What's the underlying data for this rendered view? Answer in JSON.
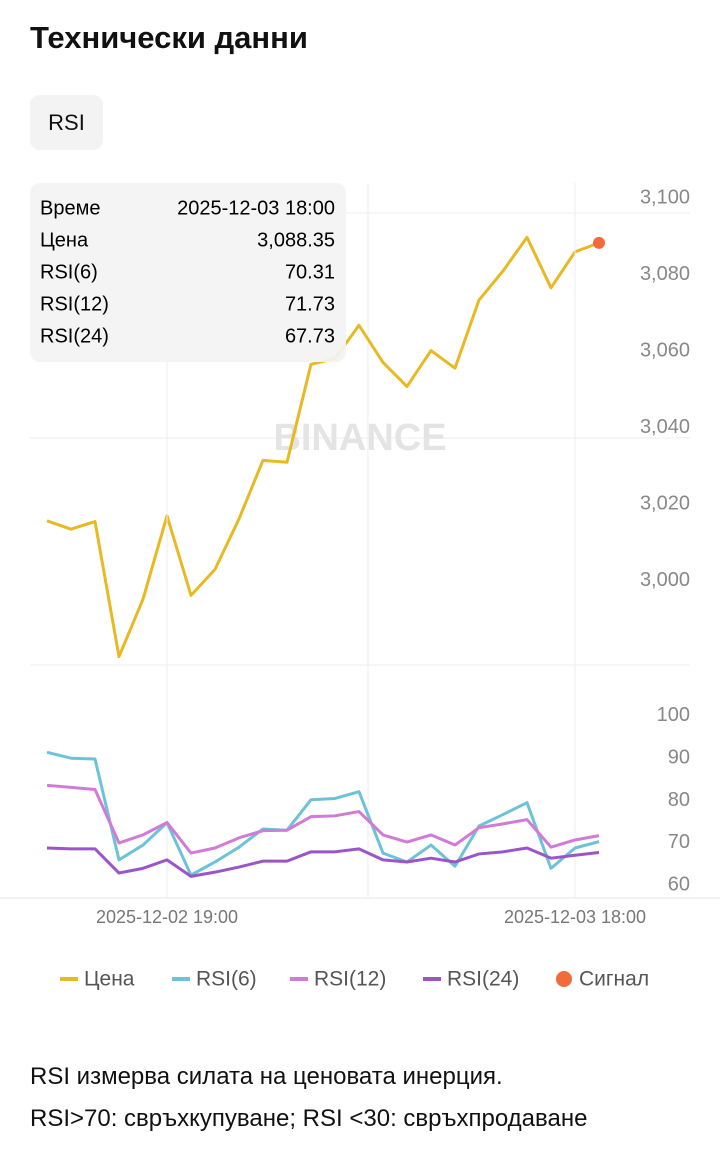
{
  "header": {
    "title": "Технически данни",
    "tab": "RSI"
  },
  "tooltip": {
    "rows": [
      [
        "Време",
        "2025-12-03 18:00"
      ],
      [
        "Цена",
        "3,088.35"
      ],
      [
        "RSI(6)",
        "70.31"
      ],
      [
        "RSI(12)",
        "71.73"
      ],
      [
        "RSI(24)",
        "67.73"
      ]
    ]
  },
  "watermark": "BINANCE",
  "chart_data": [
    {
      "type": "line",
      "series": [
        {
          "name": "Цена",
          "color": "#e8b923",
          "values": [
            3015.7,
            3013.5,
            3015.5,
            2980.2,
            2995.2,
            3017.0,
            2996.2,
            3003.0,
            3016.2,
            3031.5,
            3031.0,
            3056.6,
            3058.1,
            3066.8,
            3057.1,
            3050.8,
            3060.2,
            3055.6,
            3073.4,
            3081.0,
            3089.8,
            3076.6,
            3086.0,
            3088.35
          ]
        }
      ],
      "signal": {
        "name": "Сигнал",
        "color": "#f26b3a",
        "value": 3088.35
      },
      "ylim": [
        2978,
        3104
      ],
      "yticks": [
        {
          "value": 3000,
          "label": "3,000"
        },
        {
          "value": 3020,
          "label": "3,020"
        },
        {
          "value": 3040,
          "label": "3,040"
        },
        {
          "value": 3060,
          "label": "3,060"
        },
        {
          "value": 3080,
          "label": "3,080"
        },
        {
          "value": 3100,
          "label": "3,100"
        }
      ]
    },
    {
      "type": "line",
      "categories": [
        null,
        null,
        null,
        null,
        null,
        "2025-12-02 19:00",
        null,
        null,
        null,
        null,
        null,
        null,
        null,
        null,
        null,
        null,
        null,
        null,
        null,
        null,
        null,
        null,
        "2025-12-03 18:00",
        null
      ],
      "series": [
        {
          "name": "RSI(6)",
          "color": "#6cc3d8",
          "values": [
            91.4,
            90,
            89.8,
            66,
            69.5,
            74.8,
            62.4,
            65.5,
            69,
            73.3,
            73,
            80.2,
            80.5,
            82.1,
            67.6,
            65.5,
            69.5,
            64.5,
            74,
            76.7,
            79.5,
            64,
            68.8,
            70.31
          ]
        },
        {
          "name": "RSI(12)",
          "color": "#d27ad8",
          "values": [
            83.6,
            83.1,
            82.6,
            70,
            71.9,
            74.8,
            67.6,
            68.8,
            71.2,
            72.9,
            73,
            76.2,
            76.4,
            77.4,
            71.9,
            70.2,
            71.9,
            69.5,
            73.6,
            74.5,
            75.5,
            69,
            70.7,
            71.73
          ]
        },
        {
          "name": "RSI(24)",
          "color": "#9a55c8",
          "values": [
            68.8,
            68.6,
            68.6,
            62.9,
            64,
            66,
            62.1,
            63.1,
            64.3,
            65.7,
            65.7,
            67.9,
            67.9,
            68.6,
            66,
            65.5,
            66.4,
            65.5,
            67.4,
            67.9,
            68.8,
            66.4,
            67.1,
            67.73
          ]
        }
      ],
      "ylim": [
        57,
        112
      ],
      "yticks": [
        60,
        70,
        80,
        90,
        100
      ]
    }
  ],
  "footnote": [
    "RSI измерва силата на ценовата инерция.",
    "RSI>70: свръхкупуване; RSI <30: свръхпродаване"
  ]
}
